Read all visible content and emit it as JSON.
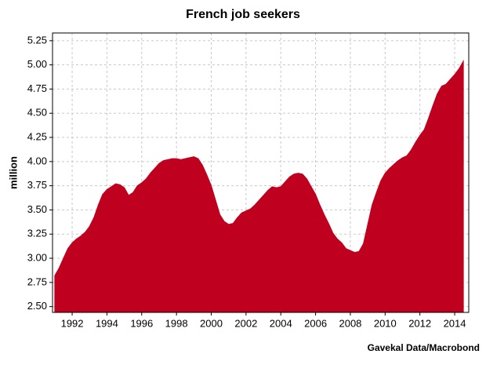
{
  "chart_data": {
    "type": "area",
    "title": "French job seekers",
    "ylabel": "million",
    "source": "Gavekal Data/Macrobond",
    "color": "#c0001f",
    "grid": true,
    "xlim": [
      1990.87,
      2014.81
    ],
    "ylim": [
      2.44,
      5.33
    ],
    "xticks": [
      1992,
      1994,
      1996,
      1998,
      2000,
      2002,
      2004,
      2006,
      2008,
      2010,
      2012,
      2014
    ],
    "yticks": [
      {
        "value": 2.5,
        "label": "2.50"
      },
      2.75,
      {
        "value": 3,
        "label": "3.00"
      },
      3.25,
      {
        "value": 3.5,
        "label": "3.50"
      },
      3.75,
      {
        "value": 4,
        "label": "4.00"
      },
      4.25,
      {
        "value": 4.5,
        "label": "4.50"
      },
      4.75,
      {
        "value": 5,
        "label": "5.00"
      },
      5.25
    ],
    "x": [
      1991.0,
      1991.25,
      1991.5,
      1991.75,
      1992.0,
      1992.25,
      1992.5,
      1992.75,
      1993.0,
      1993.25,
      1993.5,
      1993.75,
      1994.0,
      1994.25,
      1994.5,
      1994.75,
      1995.0,
      1995.25,
      1995.5,
      1995.75,
      1996.0,
      1996.25,
      1996.5,
      1996.75,
      1997.0,
      1997.25,
      1997.5,
      1997.75,
      1998.0,
      1998.25,
      1998.5,
      1998.75,
      1999.0,
      1999.25,
      1999.5,
      1999.75,
      2000.0,
      2000.25,
      2000.5,
      2000.75,
      2001.0,
      2001.25,
      2001.5,
      2001.75,
      2002.0,
      2002.25,
      2002.5,
      2002.75,
      2003.0,
      2003.25,
      2003.5,
      2003.75,
      2004.0,
      2004.25,
      2004.5,
      2004.75,
      2005.0,
      2005.25,
      2005.5,
      2005.75,
      2006.0,
      2006.25,
      2006.5,
      2006.75,
      2007.0,
      2007.25,
      2007.5,
      2007.75,
      2008.0,
      2008.25,
      2008.5,
      2008.75,
      2009.0,
      2009.25,
      2009.5,
      2009.75,
      2010.0,
      2010.25,
      2010.5,
      2010.75,
      2011.0,
      2011.25,
      2011.5,
      2011.75,
      2012.0,
      2012.25,
      2012.5,
      2012.75,
      2013.0,
      2013.25,
      2013.5,
      2013.75,
      2014.0,
      2014.25,
      2014.5
    ],
    "values": [
      2.82,
      2.9,
      3.0,
      3.1,
      3.16,
      3.2,
      3.23,
      3.27,
      3.33,
      3.42,
      3.55,
      3.66,
      3.71,
      3.74,
      3.77,
      3.76,
      3.73,
      3.65,
      3.68,
      3.75,
      3.78,
      3.82,
      3.88,
      3.93,
      3.98,
      4.01,
      4.02,
      4.03,
      4.03,
      4.02,
      4.03,
      4.04,
      4.05,
      4.03,
      3.96,
      3.86,
      3.75,
      3.6,
      3.45,
      3.38,
      3.35,
      3.36,
      3.42,
      3.47,
      3.49,
      3.51,
      3.55,
      3.6,
      3.65,
      3.7,
      3.74,
      3.73,
      3.74,
      3.79,
      3.84,
      3.87,
      3.88,
      3.87,
      3.82,
      3.74,
      3.66,
      3.55,
      3.45,
      3.36,
      3.26,
      3.2,
      3.16,
      3.1,
      3.08,
      3.06,
      3.07,
      3.15,
      3.35,
      3.55,
      3.68,
      3.8,
      3.88,
      3.93,
      3.97,
      4.01,
      4.04,
      4.06,
      4.12,
      4.2,
      4.27,
      4.33,
      4.45,
      4.58,
      4.7,
      4.78,
      4.8,
      4.85,
      4.9,
      4.96,
      5.04
    ]
  }
}
